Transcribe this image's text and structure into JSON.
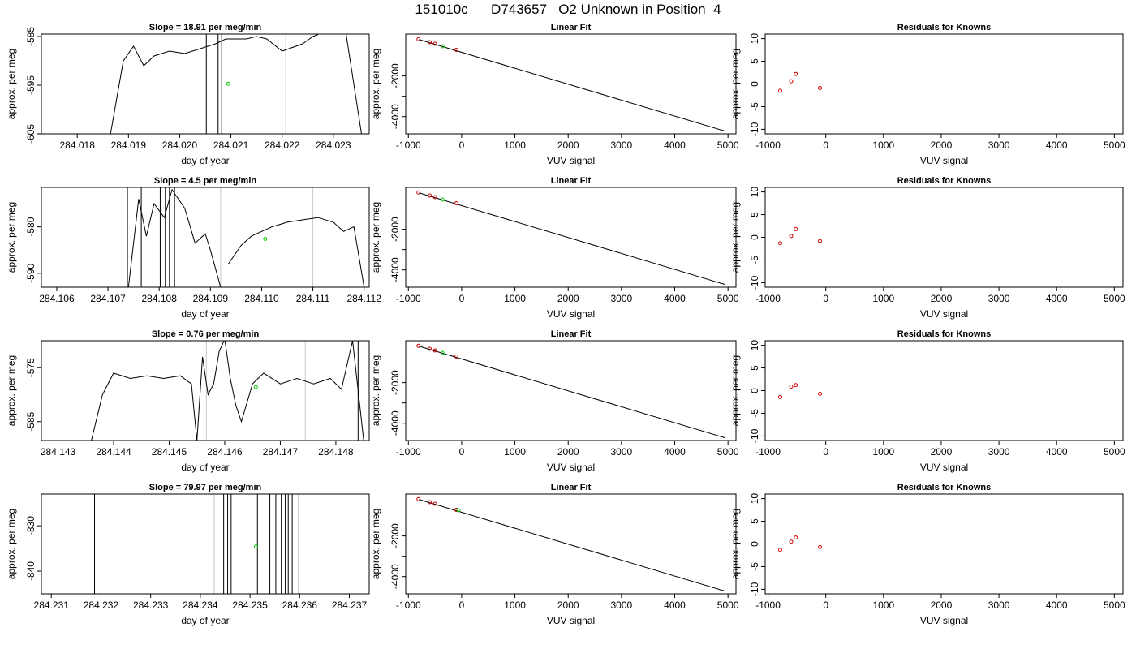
{
  "page_title": "151010c      D743657   O2 Unknown in Position  4",
  "colors": {
    "line": "#000000",
    "unknown_point": "#00cc00",
    "known_point": "#cc0000",
    "marker_line": "#c8c8c8"
  },
  "chart_data": [
    {
      "id": "row1-timeseries",
      "type": "line",
      "title": "Slope =  18.91  per meg/min",
      "xlabel": "day of year",
      "ylabel": "approx. per meg",
      "xlim": [
        284.0173,
        284.0237
      ],
      "ylim": [
        -605,
        -584.5
      ],
      "xticks": [
        284.018,
        284.019,
        284.02,
        284.021,
        284.022,
        284.023
      ],
      "xtick_decimals": 3,
      "yticks": [
        -585,
        -595,
        -605
      ],
      "marker_lines": [
        284.02207
      ],
      "spikes": [
        284.02052,
        284.02075,
        284.02082
      ],
      "series": [
        {
          "x": [
            284.01865,
            284.0189,
            284.0191,
            284.0193,
            284.0195,
            284.0198,
            284.0201,
            284.0204,
            284.0207,
            284.0209,
            284.0213,
            284.0215,
            284.0217,
            284.022,
            284.0224,
            284.0226,
            284.0227
          ],
          "y": [
            -605,
            -590,
            -587,
            -591,
            -589,
            -588,
            -588.5,
            -587.5,
            -586.5,
            -585.5,
            -585.5,
            -585,
            -585.5,
            -588,
            -586.5,
            -585,
            -584.6
          ]
        },
        {
          "x": [
            284.02325,
            284.02355
          ],
          "y": [
            -584.6,
            -605
          ]
        }
      ],
      "points": [
        {
          "x": 284.02095,
          "y": -594.7,
          "series": "unknown"
        }
      ]
    },
    {
      "id": "row1-fit",
      "type": "line",
      "title": "Linear Fit",
      "xlabel": "VUV signal",
      "ylabel": "approx. per meg",
      "xlim": [
        -1050,
        5150
      ],
      "ylim": [
        -4850,
        60
      ],
      "xticks": [
        -1000,
        0,
        1000,
        2000,
        3000,
        4000,
        5000
      ],
      "yticks": [
        -2000,
        -3000,
        -4000
      ],
      "ytick_labels": [
        "-2000",
        "",
        "-4000"
      ],
      "line": {
        "x": [
          -800,
          4950
        ],
        "y": [
          -210,
          -4720
        ]
      },
      "known_points": [
        {
          "x": -810,
          "y": -190
        },
        {
          "x": -600,
          "y": -340
        },
        {
          "x": -500,
          "y": -420
        },
        {
          "x": -100,
          "y": -720
        }
      ],
      "unknown_points": [
        {
          "x": -360,
          "y": -540
        }
      ]
    },
    {
      "id": "row1-residuals",
      "type": "scatter",
      "title": "Residuals for Knowns",
      "xlabel": "VUV signal",
      "ylabel": "approx. per meg",
      "xlim": [
        -1050,
        5150
      ],
      "ylim": [
        -11,
        11
      ],
      "xticks": [
        -1000,
        0,
        1000,
        2000,
        3000,
        4000,
        5000
      ],
      "yticks": [
        10,
        5,
        0,
        -5,
        -10
      ],
      "points": [
        {
          "x": -790,
          "y": -1.5
        },
        {
          "x": -600,
          "y": 0.6
        },
        {
          "x": -520,
          "y": 2.2
        },
        {
          "x": -100,
          "y": -0.9
        }
      ]
    },
    {
      "id": "row2-timeseries",
      "type": "line",
      "title": "Slope =  4.5  per meg/min",
      "xlabel": "day of year",
      "ylabel": "approx. per meg",
      "xlim": [
        284.1057,
        284.1121
      ],
      "ylim": [
        -593,
        -571.5
      ],
      "xticks": [
        284.106,
        284.107,
        284.108,
        284.109,
        284.11,
        284.111,
        284.112
      ],
      "xtick_decimals": 3,
      "yticks": [
        -580,
        -590
      ],
      "marker_lines": [
        284.1092,
        284.111
      ],
      "spikes": [
        284.10738,
        284.10765,
        284.10802,
        284.10812,
        284.1082,
        284.1083
      ],
      "series": [
        {
          "x": [
            284.1074,
            284.1076,
            284.10775,
            284.1079,
            284.1081,
            284.10825,
            284.1085,
            284.1087,
            284.1089,
            284.109,
            284.1092,
            284.10935
          ],
          "y": [
            -593,
            -574,
            -582,
            -575,
            -578,
            -572,
            -576,
            -583.5,
            -581.5,
            -585,
            -593,
            -593
          ]
        },
        {
          "x": [
            284.10935,
            284.1096,
            284.1098,
            284.11,
            284.1102,
            284.1105,
            284.1108,
            284.1111,
            284.1114,
            284.1116,
            284.1118,
            284.112
          ],
          "y": [
            -588,
            -584,
            -582,
            -581,
            -580,
            -579,
            -578.5,
            -578,
            -579,
            -581,
            -580,
            -593
          ]
        }
      ],
      "points": [
        {
          "x": 284.11007,
          "y": -582.6,
          "series": "unknown"
        }
      ]
    },
    {
      "id": "row2-fit",
      "type": "line",
      "title": "Linear Fit",
      "xlabel": "VUV signal",
      "ylabel": "approx. per meg",
      "xlim": [
        -1050,
        5150
      ],
      "ylim": [
        -4850,
        60
      ],
      "xticks": [
        -1000,
        0,
        1000,
        2000,
        3000,
        4000,
        5000
      ],
      "yticks": [
        -2000,
        -3000,
        -4000
      ],
      "ytick_labels": [
        "-2000",
        "",
        "-4000"
      ],
      "line": {
        "x": [
          -800,
          4950
        ],
        "y": [
          -210,
          -4720
        ]
      },
      "known_points": [
        {
          "x": -810,
          "y": -190
        },
        {
          "x": -600,
          "y": -340
        },
        {
          "x": -500,
          "y": -420
        },
        {
          "x": -100,
          "y": -720
        }
      ],
      "unknown_points": [
        {
          "x": -360,
          "y": -540
        }
      ]
    },
    {
      "id": "row2-residuals",
      "type": "scatter",
      "title": "Residuals for Knowns",
      "xlabel": "VUV signal",
      "ylabel": "approx. per meg",
      "xlim": [
        -1050,
        5150
      ],
      "ylim": [
        -11,
        11
      ],
      "xticks": [
        -1000,
        0,
        1000,
        2000,
        3000,
        4000,
        5000
      ],
      "yticks": [
        10,
        5,
        0,
        -5,
        -10
      ],
      "points": [
        {
          "x": -790,
          "y": -1.3
        },
        {
          "x": -600,
          "y": 0.3
        },
        {
          "x": -520,
          "y": 1.8
        },
        {
          "x": -100,
          "y": -0.8
        }
      ]
    },
    {
      "id": "row3-timeseries",
      "type": "line",
      "title": "Slope =  0.76  per meg/min",
      "xlabel": "day of year",
      "ylabel": "approx. per meg",
      "xlim": [
        284.1427,
        284.1486
      ],
      "ylim": [
        -588.5,
        -570
      ],
      "xticks": [
        284.143,
        284.144,
        284.145,
        284.146,
        284.147,
        284.148
      ],
      "xtick_decimals": 3,
      "yticks": [
        -575,
        -585
      ],
      "marker_lines": [
        284.14567,
        284.14745
      ],
      "spikes": [
        284.1484
      ],
      "series": [
        {
          "x": [
            284.1436,
            284.1438,
            284.144,
            284.1443,
            284.1446,
            284.1449,
            284.1452,
            284.1454,
            284.1455,
            284.1456,
            284.1457,
            284.1458,
            284.1459,
            284.146,
            284.1461,
            284.1462,
            284.1463,
            284.1465,
            284.1467,
            284.147,
            284.1473,
            284.1476,
            284.1479,
            284.1481,
            284.1483,
            284.1485
          ],
          "y": [
            -588.5,
            -580,
            -576,
            -577,
            -576.5,
            -577,
            -576.5,
            -578,
            -588.5,
            -573,
            -580,
            -578,
            -572,
            -569.7,
            -577,
            -582,
            -585,
            -578,
            -576,
            -578,
            -577,
            -578,
            -577,
            -579,
            -570,
            -588.5
          ]
        }
      ],
      "points": [
        {
          "x": 284.14656,
          "y": -578.6,
          "series": "unknown"
        }
      ]
    },
    {
      "id": "row3-fit",
      "type": "line",
      "title": "Linear Fit",
      "xlabel": "VUV signal",
      "ylabel": "approx. per meg",
      "xlim": [
        -1050,
        5150
      ],
      "ylim": [
        -4850,
        60
      ],
      "xticks": [
        -1000,
        0,
        1000,
        2000,
        3000,
        4000,
        5000
      ],
      "yticks": [
        -2000,
        -3000,
        -4000
      ],
      "ytick_labels": [
        "-2000",
        "",
        "-4000"
      ],
      "line": {
        "x": [
          -800,
          4950
        ],
        "y": [
          -210,
          -4720
        ]
      },
      "known_points": [
        {
          "x": -810,
          "y": -190
        },
        {
          "x": -600,
          "y": -340
        },
        {
          "x": -500,
          "y": -420
        },
        {
          "x": -100,
          "y": -720
        }
      ],
      "unknown_points": [
        {
          "x": -360,
          "y": -540
        }
      ]
    },
    {
      "id": "row3-residuals",
      "type": "scatter",
      "title": "Residuals for Knowns",
      "xlabel": "VUV signal",
      "ylabel": "approx. per meg",
      "xlim": [
        -1050,
        5150
      ],
      "ylim": [
        -11,
        11
      ],
      "xticks": [
        -1000,
        0,
        1000,
        2000,
        3000,
        4000,
        5000
      ],
      "yticks": [
        10,
        5,
        0,
        -5,
        -10
      ],
      "points": [
        {
          "x": -790,
          "y": -1.4
        },
        {
          "x": -600,
          "y": 0.9
        },
        {
          "x": -520,
          "y": 1.2
        },
        {
          "x": -100,
          "y": -0.7
        }
      ]
    },
    {
      "id": "row4-timeseries",
      "type": "line",
      "title": "Slope =  79.97  per meg/min",
      "xlabel": "day of year",
      "ylabel": "approx. per meg",
      "xlim": [
        284.2308,
        284.2374
      ],
      "ylim": [
        -845,
        -823
      ],
      "xticks": [
        284.231,
        284.232,
        284.233,
        284.234,
        284.235,
        284.236,
        284.237
      ],
      "xtick_decimals": 3,
      "yticks": [
        -830,
        -840
      ],
      "marker_lines": [
        284.23428,
        284.23597
      ],
      "spikes": [
        284.23187,
        284.23447,
        284.23455,
        284.23462,
        284.23515,
        284.2354,
        284.23552,
        284.23563,
        284.23571,
        284.23577,
        284.23585
      ],
      "series": [],
      "points": [
        {
          "x": 284.23512,
          "y": -834.6,
          "series": "unknown"
        }
      ]
    },
    {
      "id": "row4-fit",
      "type": "line",
      "title": "Linear Fit",
      "xlabel": "VUV signal",
      "ylabel": "approx. per meg",
      "xlim": [
        -1050,
        5150
      ],
      "ylim": [
        -4850,
        60
      ],
      "xticks": [
        -1000,
        0,
        1000,
        2000,
        3000,
        4000,
        5000
      ],
      "yticks": [
        -2000,
        -3000,
        -4000
      ],
      "ytick_labels": [
        "-2000",
        "",
        "-4000"
      ],
      "line": {
        "x": [
          -800,
          4950
        ],
        "y": [
          -210,
          -4720
        ]
      },
      "known_points": [
        {
          "x": -810,
          "y": -190
        },
        {
          "x": -600,
          "y": -340
        },
        {
          "x": -500,
          "y": -420
        },
        {
          "x": -100,
          "y": -720
        }
      ],
      "unknown_points": [
        {
          "x": -60,
          "y": -740
        }
      ]
    },
    {
      "id": "row4-residuals",
      "type": "scatter",
      "title": "Residuals for Knowns",
      "xlabel": "VUV signal",
      "ylabel": "approx. per meg",
      "xlim": [
        -1050,
        5150
      ],
      "ylim": [
        -11,
        11
      ],
      "xticks": [
        -1000,
        0,
        1000,
        2000,
        3000,
        4000,
        5000
      ],
      "yticks": [
        10,
        5,
        0,
        -5,
        -10
      ],
      "points": [
        {
          "x": -790,
          "y": -1.3
        },
        {
          "x": -600,
          "y": 0.5
        },
        {
          "x": -520,
          "y": 1.4
        },
        {
          "x": -100,
          "y": -0.7
        }
      ]
    }
  ]
}
